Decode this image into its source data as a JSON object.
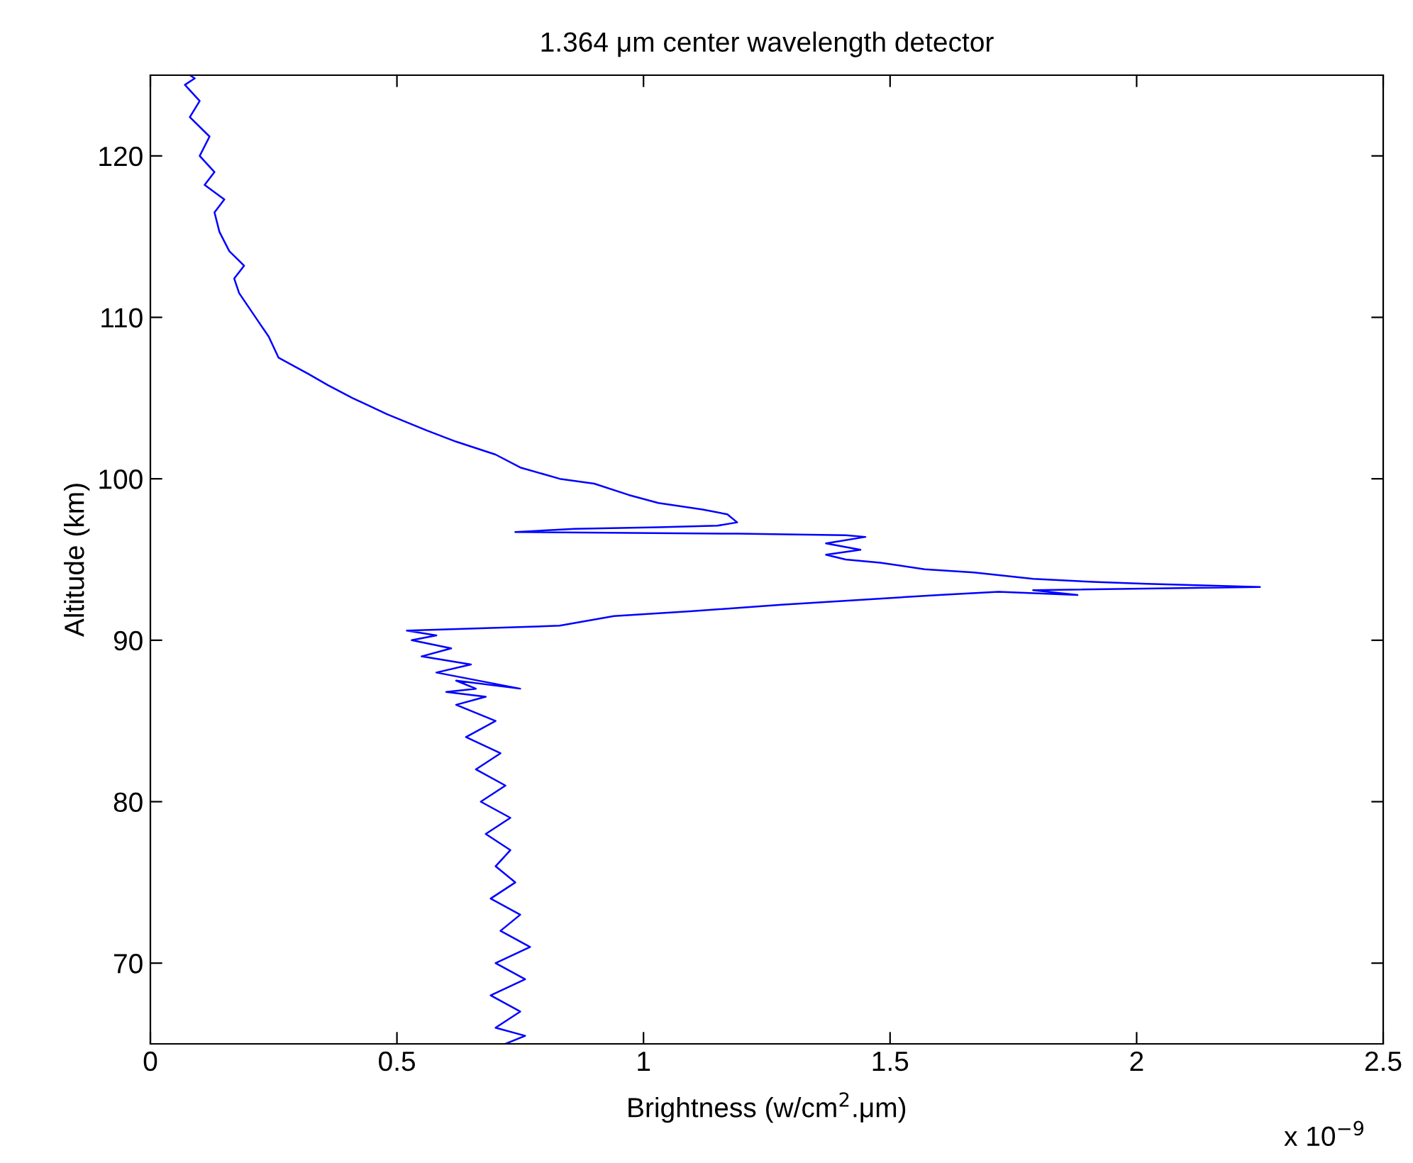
{
  "chart_data": {
    "type": "line",
    "title": "1.364 μm center wavelength detector",
    "xlabel": "Brightness (w/cm$^{2}$.μm)",
    "ylabel": "Altitude (km)",
    "annotations": [
      "x 10$^{−9}$"
    ],
    "xlim": [
      0,
      2.5
    ],
    "xticks": [
      0,
      0.5,
      1,
      1.5,
      2,
      2.5
    ],
    "ylim": [
      65,
      125
    ],
    "yticks": [
      70,
      80,
      90,
      100,
      110,
      120
    ],
    "grid": false,
    "legend": false,
    "marker": "none",
    "line_style": "solid",
    "series": [
      {
        "color": "#0000ff",
        "x": [
          0.72,
          0.76,
          0.7,
          0.75,
          0.69,
          0.76,
          0.7,
          0.77,
          0.71,
          0.75,
          0.69,
          0.74,
          0.7,
          0.73,
          0.68,
          0.73,
          0.67,
          0.72,
          0.66,
          0.71,
          0.64,
          0.7,
          0.62,
          0.68,
          0.6,
          0.66,
          0.62,
          0.75,
          0.58,
          0.65,
          0.55,
          0.61,
          0.53,
          0.58,
          0.52,
          0.83,
          0.94,
          1.1,
          1.28,
          1.49,
          1.6,
          1.72,
          1.88,
          1.79,
          2.25,
          2.02,
          1.92,
          1.79,
          1.67,
          1.57,
          1.48,
          1.41,
          1.37,
          1.44,
          1.37,
          1.45,
          1.41,
          1.19,
          0.74,
          0.86,
          1.03,
          1.15,
          1.19,
          1.17,
          1.12,
          1.03,
          0.97,
          0.9,
          0.83,
          0.75,
          0.7,
          0.62,
          0.56,
          0.48,
          0.41,
          0.36,
          0.32,
          0.26,
          0.24,
          0.22,
          0.2,
          0.18,
          0.17,
          0.19,
          0.16,
          0.14,
          0.13,
          0.15,
          0.11,
          0.13,
          0.1,
          0.12,
          0.08,
          0.1,
          0.07,
          0.09,
          0.08
        ],
        "values": [
          65.0,
          65.5,
          66.0,
          67.0,
          68.0,
          69.0,
          70.0,
          71.0,
          72.0,
          73.0,
          74.0,
          75.0,
          76.0,
          77.0,
          78.0,
          79.0,
          80.0,
          81.0,
          82.0,
          83.0,
          84.0,
          85.0,
          86.0,
          86.5,
          86.8,
          87.0,
          87.5,
          87.0,
          88.0,
          88.5,
          89.0,
          89.5,
          90.0,
          90.3,
          90.6,
          90.9,
          91.5,
          91.8,
          92.2,
          92.6,
          92.8,
          93.0,
          92.8,
          93.1,
          93.3,
          93.5,
          93.6,
          93.8,
          94.2,
          94.4,
          94.8,
          95.0,
          95.3,
          95.6,
          96.0,
          96.4,
          96.5,
          96.6,
          96.7,
          96.9,
          97.0,
          97.1,
          97.3,
          97.8,
          98.1,
          98.5,
          99.0,
          99.7,
          100.0,
          100.7,
          101.5,
          102.3,
          103.0,
          104.0,
          105.0,
          105.8,
          106.5,
          107.5,
          108.8,
          109.7,
          110.6,
          111.5,
          112.4,
          113.2,
          114.1,
          115.3,
          116.5,
          117.3,
          118.2,
          119.0,
          120.0,
          121.2,
          122.4,
          123.4,
          124.4,
          124.8,
          125.0
        ]
      }
    ]
  }
}
